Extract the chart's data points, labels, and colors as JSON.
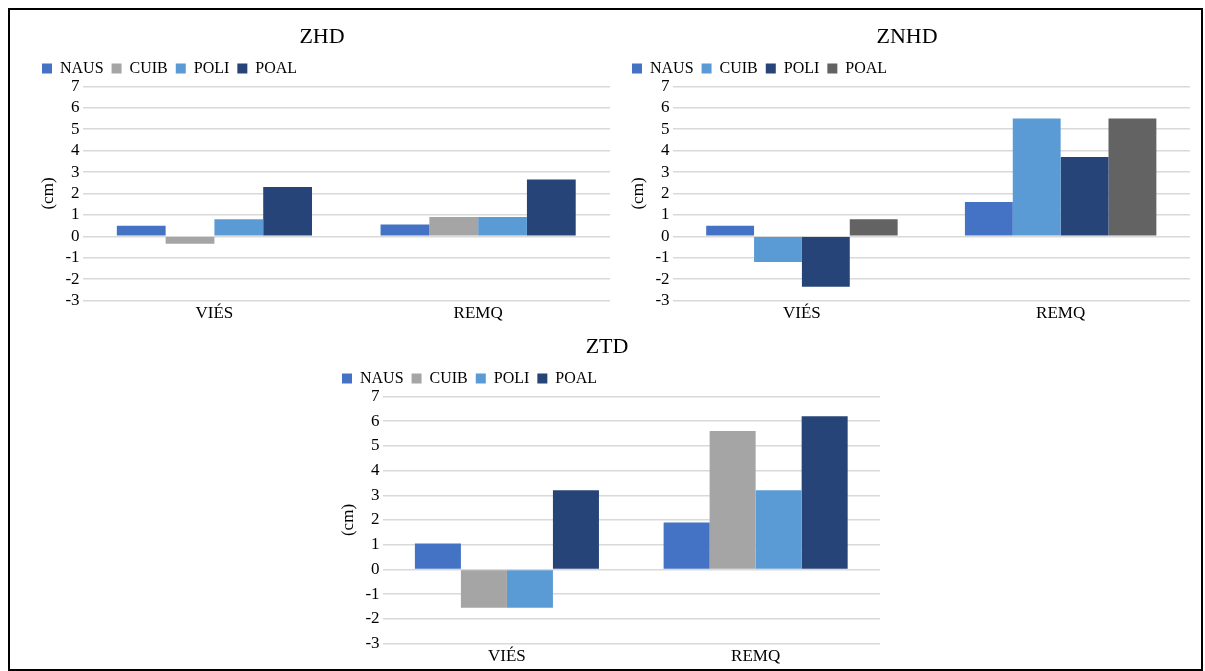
{
  "chart_data": [
    {
      "type": "bar",
      "title": "ZHD",
      "ylabel": "(cm)",
      "categories": [
        "VIÉS",
        "REMQ"
      ],
      "ylim": [
        -3,
        7
      ],
      "yticks": [
        -3,
        -2,
        -1,
        0,
        1,
        2,
        3,
        4,
        5,
        6,
        7
      ],
      "grid": "y",
      "legend": "top left",
      "series": [
        {
          "name": "NAUS",
          "color": "#4472c4",
          "values": [
            0.5,
            0.55
          ]
        },
        {
          "name": "CUIB",
          "color": "#a5a5a5",
          "values": [
            -0.35,
            0.9
          ]
        },
        {
          "name": "POLI",
          "color": "#5b9bd5",
          "values": [
            0.8,
            0.9
          ]
        },
        {
          "name": "POAL",
          "color": "#264478",
          "values": [
            2.3,
            2.65
          ]
        }
      ]
    },
    {
      "type": "bar",
      "title": "ZNHD",
      "ylabel": "(cm)",
      "categories": [
        "VIÉS",
        "REMQ"
      ],
      "ylim": [
        -3,
        7
      ],
      "yticks": [
        -3,
        -2,
        -1,
        0,
        1,
        2,
        3,
        4,
        5,
        6,
        7
      ],
      "grid": "y",
      "legend": "top left",
      "series": [
        {
          "name": "NAUS",
          "color": "#4472c4",
          "values": [
            0.5,
            1.6
          ]
        },
        {
          "name": "CUIB",
          "color": "#5b9bd5",
          "values": [
            -1.2,
            5.5
          ]
        },
        {
          "name": "POLI",
          "color": "#264478",
          "values": [
            -2.35,
            3.7
          ]
        },
        {
          "name": "POAL",
          "color": "#636363",
          "values": [
            0.8,
            5.5
          ]
        }
      ]
    },
    {
      "type": "bar",
      "title": "ZTD",
      "ylabel": "(cm)",
      "categories": [
        "VIÉS",
        "REMQ"
      ],
      "ylim": [
        -3,
        7
      ],
      "yticks": [
        -3,
        -2,
        -1,
        0,
        1,
        2,
        3,
        4,
        5,
        6,
        7
      ],
      "grid": "y",
      "legend": "top left",
      "series": [
        {
          "name": "NAUS",
          "color": "#4472c4",
          "values": [
            1.05,
            1.9
          ]
        },
        {
          "name": "CUIB",
          "color": "#a5a5a5",
          "values": [
            -1.55,
            5.6
          ]
        },
        {
          "name": "POLI",
          "color": "#5b9bd5",
          "values": [
            -1.55,
            3.2
          ]
        },
        {
          "name": "POAL",
          "color": "#264478",
          "values": [
            3.2,
            6.2
          ]
        }
      ]
    }
  ]
}
